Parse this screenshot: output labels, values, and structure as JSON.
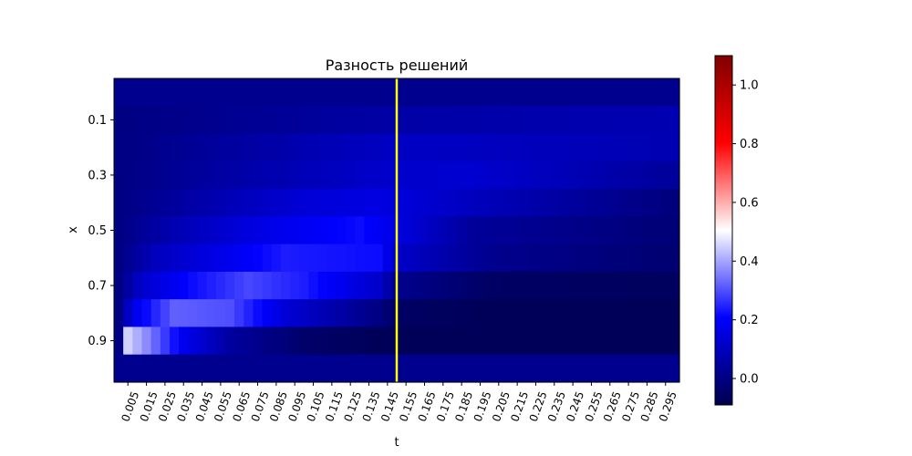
{
  "chart_data": {
    "type": "heatmap",
    "title": "Разность решений",
    "xlabel": "t",
    "ylabel": "x",
    "x_ticks": [
      "0.005",
      "0.015",
      "0.025",
      "0.035",
      "0.045",
      "0.055",
      "0.065",
      "0.075",
      "0.085",
      "0.095",
      "0.105",
      "0.115",
      "0.125",
      "0.135",
      "0.145",
      "0.155",
      "0.165",
      "0.175",
      "0.185",
      "0.195",
      "0.205",
      "0.215",
      "0.225",
      "0.235",
      "0.245",
      "0.255",
      "0.265",
      "0.275",
      "0.285",
      "0.295"
    ],
    "y_ticks": [
      "0.1",
      "0.3",
      "0.5",
      "0.7",
      "0.9"
    ],
    "x_range": [
      0,
      0.3
    ],
    "y_range": [
      0,
      1
    ],
    "n_time_steps": 61,
    "n_space_steps": 11,
    "marker_line": {
      "t": 0.15,
      "color": "#ffff00"
    },
    "colormap": "seismic",
    "colorbar": {
      "range": [
        -0.09,
        1.1
      ],
      "ticks": [
        "0.0",
        "0.2",
        "0.4",
        "0.6",
        "0.8",
        "1.0"
      ],
      "tick_values": [
        0,
        0.2,
        0.4,
        0.6,
        0.8,
        1.0
      ]
    },
    "rows": [
      {
        "x": 0.0,
        "t": [
          0,
          0.3
        ],
        "v": [
          0.02,
          0.02
        ]
      },
      {
        "x": 0.1,
        "t": [
          0,
          0.05,
          0.15,
          0.3
        ],
        "v": [
          0.0,
          0.02,
          0.06,
          0.08
        ]
      },
      {
        "x": 0.2,
        "t": [
          0,
          0.05,
          0.12,
          0.15,
          0.3
        ],
        "v": [
          0.0,
          0.04,
          0.09,
          0.11,
          0.08
        ]
      },
      {
        "x": 0.3,
        "t": [
          0,
          0.05,
          0.14,
          0.19,
          0.3
        ],
        "v": [
          0.0,
          0.05,
          0.12,
          0.13,
          0.04
        ]
      },
      {
        "x": 0.4,
        "t": [
          0,
          0.04,
          0.1,
          0.14,
          0.19,
          0.3
        ],
        "v": [
          0.0,
          0.06,
          0.14,
          0.16,
          0.1,
          -0.01
        ]
      },
      {
        "x": 0.5,
        "t": [
          0,
          0.03,
          0.08,
          0.13,
          0.15,
          0.19,
          0.3
        ],
        "v": [
          0.0,
          0.08,
          0.17,
          0.22,
          0.16,
          0.04,
          -0.02
        ]
      },
      {
        "x": 0.6,
        "t": [
          0,
          0.02,
          0.06,
          0.09,
          0.14,
          0.15,
          0.2,
          0.3
        ],
        "v": [
          0.0,
          0.1,
          0.18,
          0.24,
          0.22,
          0.12,
          0.02,
          -0.03
        ]
      },
      {
        "x": 0.7,
        "t": [
          0,
          0.012,
          0.04,
          0.07,
          0.1,
          0.14,
          0.15,
          0.2,
          0.3
        ],
        "v": [
          0.0,
          0.12,
          0.22,
          0.29,
          0.24,
          0.12,
          0.02,
          -0.05,
          -0.06
        ]
      },
      {
        "x": 0.8,
        "t": [
          0,
          0.008,
          0.03,
          0.06,
          0.09,
          0.14,
          0.15,
          0.2,
          0.3
        ],
        "v": [
          0.0,
          0.17,
          0.32,
          0.3,
          0.14,
          0.0,
          -0.05,
          -0.07,
          -0.07
        ]
      },
      {
        "x": 0.9,
        "t": [
          0,
          0.004,
          0.015,
          0.035,
          0.06,
          0.1,
          0.14,
          0.3
        ],
        "v": [
          0.0,
          0.46,
          0.37,
          0.18,
          0.05,
          -0.04,
          -0.07,
          -0.07
        ]
      },
      {
        "x": 1.0,
        "t": [
          0,
          0.3
        ],
        "v": [
          0.02,
          0.02
        ]
      }
    ]
  }
}
